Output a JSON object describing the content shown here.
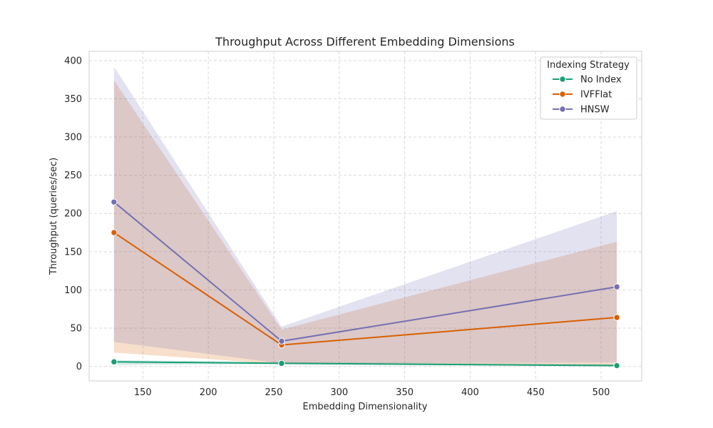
{
  "chart_data": {
    "type": "line",
    "title": "Throughput Across Different Embedding Dimensions",
    "xlabel": "Embedding Dimensionality",
    "ylabel": "Throughput (queries/sec)",
    "xlim": [
      109,
      531
    ],
    "ylim": [
      -19,
      412
    ],
    "xticks": [
      150,
      200,
      250,
      300,
      350,
      400,
      450,
      500
    ],
    "yticks": [
      0,
      50,
      100,
      150,
      200,
      250,
      300,
      350,
      400
    ],
    "grid": true,
    "legend": {
      "title": "Indexing Strategy",
      "placement": "top-right"
    },
    "x": [
      128,
      256,
      512
    ],
    "series": [
      {
        "name": "No Index",
        "color": "#1b9e77",
        "values": [
          6,
          4,
          1
        ],
        "ci_lower": [
          2,
          3,
          0
        ],
        "ci_upper": [
          8,
          6,
          3
        ]
      },
      {
        "name": "IVFFlat",
        "color": "#d95f02",
        "values": [
          175,
          28,
          64
        ],
        "ci_lower": [
          18,
          3,
          2
        ],
        "ci_upper": [
          374,
          48,
          163
        ]
      },
      {
        "name": "HNSW",
        "color": "#7570b3",
        "values": [
          215,
          33,
          104
        ],
        "ci_lower": [
          32,
          4,
          5
        ],
        "ci_upper": [
          392,
          52,
          203
        ]
      }
    ]
  }
}
